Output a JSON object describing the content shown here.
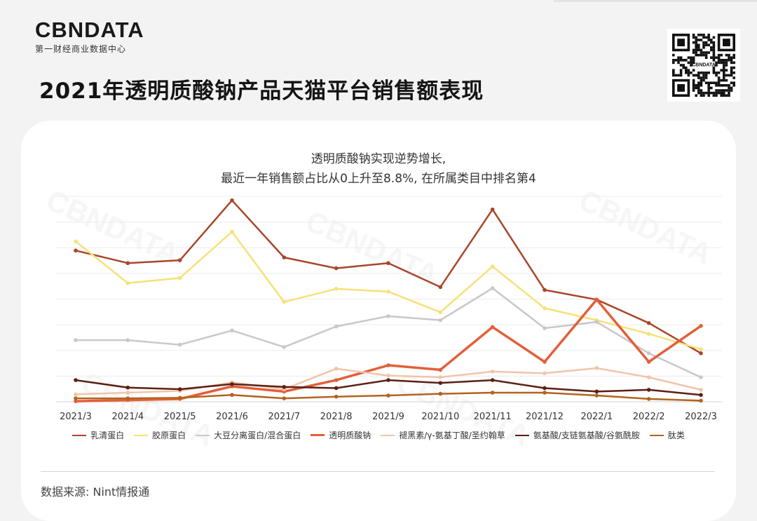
{
  "brand": {
    "name": "CBNDATA",
    "tagline": "第一财经商业数据中心"
  },
  "page_title": "2021年透明质酸钠产品天猫平台销售额表现",
  "subtitle_lines": [
    "透明质酸钠实现逆势增长,",
    "最近一年销售额占比从0上升至8.8%,  在所属类目中排名第4"
  ],
  "qr_label": "CBNDATA",
  "source": "数据来源:  Nint情报通",
  "chart_data": {
    "type": "line",
    "x": [
      "2021/3",
      "2021/4",
      "2021/5",
      "2021/6",
      "2021/7",
      "2021/8",
      "2021/9",
      "2021/10",
      "2021/11",
      "2021/12",
      "2022/1",
      "2022/2",
      "2022/3"
    ],
    "ylim": [
      0,
      36
    ],
    "grid": true,
    "legend": "bottom",
    "series": [
      {
        "name": "乳清蛋白",
        "color": "#a8462a",
        "width": 2.5,
        "values": [
          26.5,
          24.3,
          24.8,
          35.3,
          25.3,
          23.4,
          24.3,
          20.1,
          33.7,
          19.6,
          17.9,
          13.8,
          8.5
        ]
      },
      {
        "name": "胶原蛋白",
        "color": "#f6e178",
        "width": 2.5,
        "values": [
          28.1,
          20.8,
          21.7,
          29.8,
          17.5,
          19.8,
          19.3,
          15.7,
          23.7,
          16.4,
          14.3,
          11.9,
          9.2
        ]
      },
      {
        "name": "大豆分离蛋白/混合蛋白",
        "color": "#c8c8c8",
        "width": 2.5,
        "values": [
          10.8,
          10.8,
          10.0,
          12.5,
          9.6,
          13.2,
          15.0,
          14.3,
          19.9,
          12.9,
          14.0,
          8.5,
          4.3
        ]
      },
      {
        "name": "透明质酸钠",
        "color": "#e35f39",
        "width": 3.5,
        "values": [
          0.1,
          0.3,
          0.5,
          2.7,
          1.8,
          3.8,
          6.4,
          5.6,
          13.1,
          7.0,
          17.9,
          7.0,
          13.3
        ]
      },
      {
        "name": "褪黑素/γ-氨基丁酸/圣约翰草",
        "color": "#f2c4aa",
        "width": 2.5,
        "values": [
          1.3,
          1.6,
          1.9,
          3.4,
          2.2,
          5.8,
          4.6,
          4.3,
          5.3,
          5.0,
          5.9,
          4.3,
          2.1
        ]
      },
      {
        "name": "氨基酸/支链氨基酸/谷氨酰胺",
        "color": "#5c1f14",
        "width": 2.5,
        "values": [
          3.8,
          2.5,
          2.2,
          3.1,
          2.6,
          2.4,
          3.8,
          3.3,
          3.8,
          2.4,
          1.8,
          2.1,
          1.2
        ]
      },
      {
        "name": "肽类",
        "color": "#b3631f",
        "width": 2.5,
        "values": [
          0.6,
          0.6,
          0.7,
          1.2,
          0.6,
          0.9,
          1.1,
          1.4,
          1.6,
          1.6,
          1.1,
          0.5,
          0.2
        ]
      }
    ]
  }
}
